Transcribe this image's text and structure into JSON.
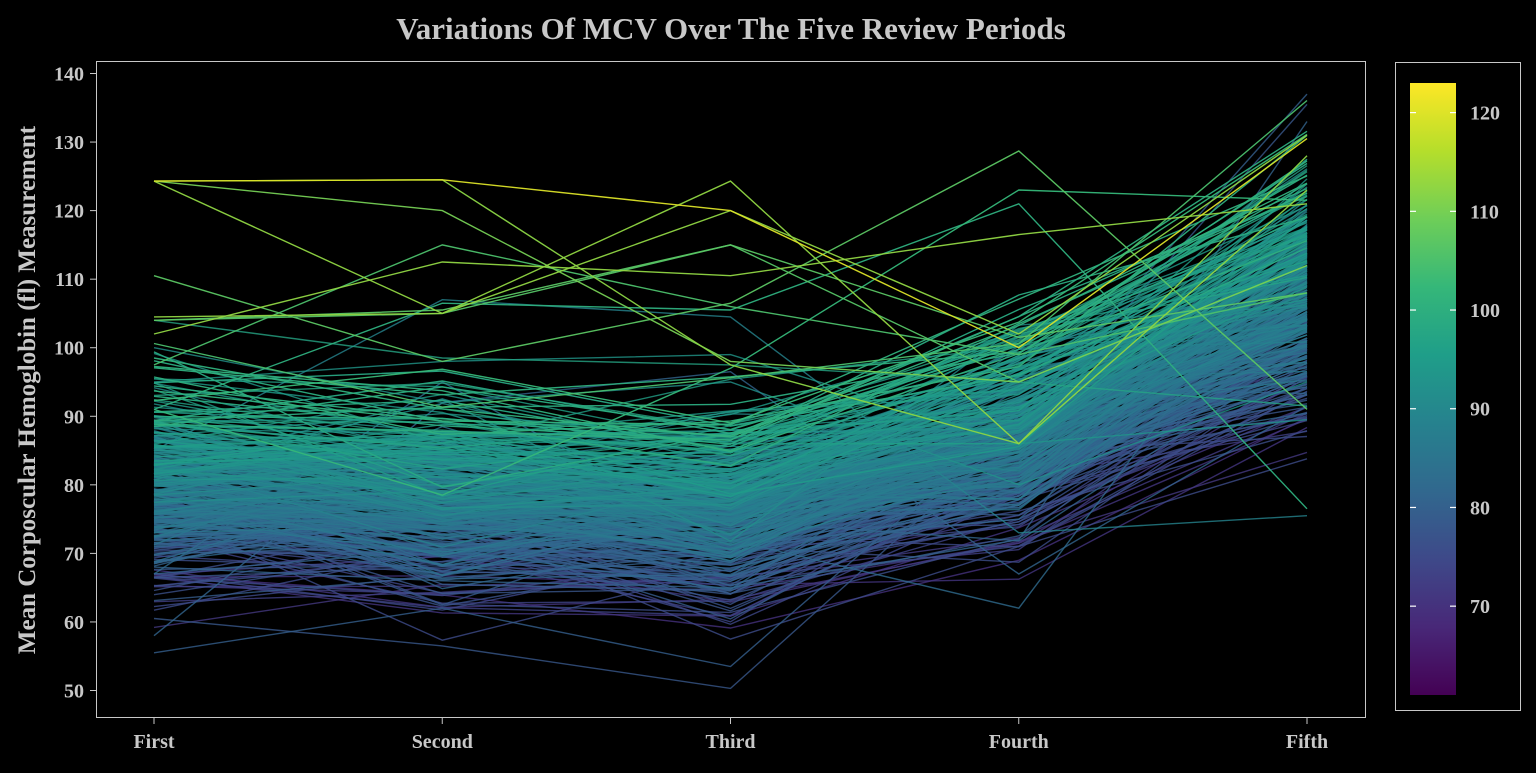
{
  "chart_data": {
    "type": "line",
    "chart_style": "parallel coordinates, one line per patient, coloured by mean MCV",
    "title": "Variations Of MCV Over The Five Review Periods",
    "xlabel": "",
    "ylabel": "Mean Corposcular Hemoglobin (fl) Measurement",
    "categories": [
      "First",
      "Second",
      "Third",
      "Fourth",
      "Fifth"
    ],
    "ylim": [
      48,
      141
    ],
    "yticks": [
      50,
      60,
      70,
      80,
      90,
      100,
      110,
      120,
      130,
      140
    ],
    "grid": false,
    "background_color": "#000000",
    "text_color": "#c8c8c8",
    "colorbar": {
      "position": "right",
      "palette": "viridis",
      "range": [
        61,
        123
      ],
      "ticks": [
        70,
        80,
        90,
        100,
        110,
        120
      ]
    },
    "highlighted_series": [
      {
        "values": [
          124.3,
          124.5,
          120.0,
          100.0,
          130.5
        ]
      },
      {
        "values": [
          124.3,
          124.5,
          97.5,
          86.0,
          128.0
        ]
      },
      {
        "values": [
          124.3,
          120.0,
          98.0,
          95.0,
          112.0
        ]
      },
      {
        "values": [
          124.3,
          105.0,
          124.3,
          86.0,
          123.0
        ]
      },
      {
        "values": [
          104.0,
          105.0,
          115.0,
          95.0,
          112.0
        ]
      },
      {
        "values": [
          104.0,
          105.5,
          115.0,
          101.5,
          108.0
        ]
      },
      {
        "values": [
          97.5,
          115.0,
          106.0,
          99.0,
          108.0
        ]
      },
      {
        "values": [
          110.5,
          98.0,
          106.5,
          128.7,
          91.0
        ]
      },
      {
        "values": [
          104.5,
          105.0,
          120.0,
          102.0,
          131.0
        ]
      },
      {
        "values": [
          102.0,
          112.5,
          110.5,
          116.5,
          121.0
        ]
      },
      {
        "values": [
          91.0,
          78.5,
          97.0,
          123.0,
          121.5
        ]
      },
      {
        "values": [
          91.0,
          106.5,
          105.5,
          121.0,
          76.5
        ]
      },
      {
        "values": [
          85.0,
          107.0,
          104.5,
          73.0,
          75.5
        ]
      },
      {
        "values": [
          67.0,
          95.0,
          72.0,
          62.0,
          118.0
        ]
      },
      {
        "values": [
          58.0,
          92.0,
          96.5,
          67.0,
          91.5
        ]
      },
      {
        "values": [
          55.5,
          62.0,
          53.5,
          90.0,
          137.0
        ]
      },
      {
        "values": [
          60.5,
          56.5,
          50.3,
          88.0,
          135.5
        ]
      },
      {
        "values": [
          89.5,
          75.0,
          57.5,
          71.0,
          83.8
        ]
      },
      {
        "values": [
          68.0,
          66.0,
          65.0,
          72.0,
          133.0
        ]
      },
      {
        "values": [
          104.0,
          98.5,
          97.5,
          95.0,
          91.5
        ]
      },
      {
        "values": [
          100.0,
          92.0,
          95.0,
          80.0,
          95.0
        ]
      },
      {
        "values": [
          95.0,
          98.0,
          99.0,
          86.0,
          89.5
        ]
      }
    ],
    "bulk_band": {
      "lines": 420,
      "center": [
        80.0,
        78.0,
        77.0,
        87.0,
        108.0
      ],
      "spread": [
        8.0,
        8.0,
        8.0,
        8.5,
        10.5
      ],
      "range": [
        [
          55.0,
          104.0
        ],
        [
          56.0,
          106.0
        ],
        [
          50.0,
          106.0
        ],
        [
          62.0,
          116.0
        ],
        [
          76.0,
          137.0
        ]
      ]
    }
  }
}
